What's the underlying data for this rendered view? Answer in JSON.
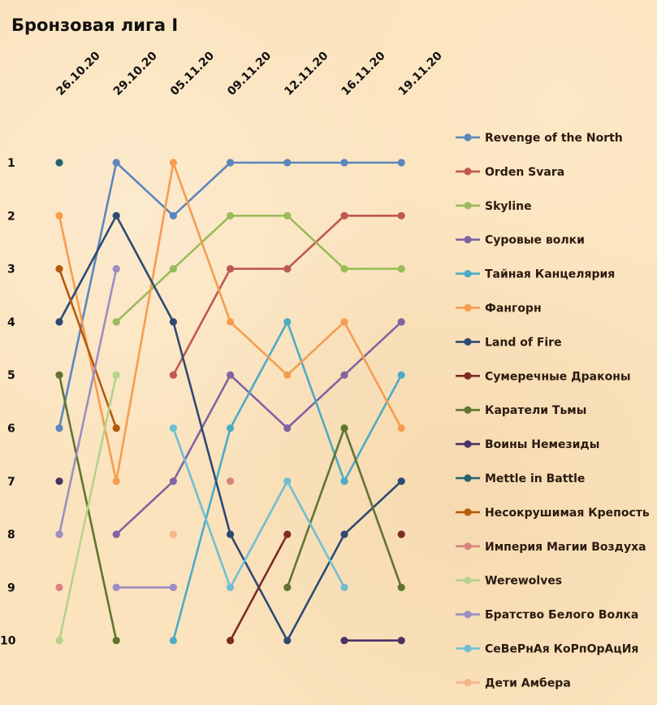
{
  "chart_data": {
    "type": "line",
    "title": "Бронзовая лига I",
    "x": [
      "26.10.20",
      "29.10.20",
      "05.11.20",
      "09.11.20",
      "12.11.20",
      "16.11.20",
      "19.11.20"
    ],
    "y_ticks": [
      "1",
      "2",
      "3",
      "4",
      "5",
      "6",
      "7",
      "8",
      "9",
      "10"
    ],
    "ylim": [
      1,
      10
    ],
    "y_inverted": true,
    "grid": false,
    "legend_position": "right",
    "series": [
      {
        "name": "Revenge of the North",
        "color": "#5b86be",
        "values": [
          6,
          1,
          2,
          1,
          1,
          1,
          1
        ]
      },
      {
        "name": "Orden Svara",
        "color": "#bf5850",
        "values": [
          null,
          null,
          5,
          3,
          3,
          2,
          2
        ]
      },
      {
        "name": "Skyline",
        "color": "#9abb59",
        "values": [
          null,
          4,
          3,
          2,
          2,
          3,
          3
        ]
      },
      {
        "name": "Суровые волки",
        "color": "#8064a2",
        "values": [
          null,
          8,
          7,
          5,
          6,
          5,
          4
        ]
      },
      {
        "name": "Тайная Канцелярия",
        "color": "#4bacc6",
        "values": [
          null,
          null,
          10,
          6,
          4,
          7,
          5
        ]
      },
      {
        "name": "Фангорн",
        "color": "#f59d4f",
        "values": [
          2,
          7,
          1,
          4,
          5,
          4,
          6
        ]
      },
      {
        "name": "Land of Fire",
        "color": "#2f4a72",
        "values": [
          4,
          2,
          4,
          8,
          10,
          8,
          7
        ]
      },
      {
        "name": "Сумеречные Драконы",
        "color": "#7b2c24",
        "values": [
          null,
          null,
          null,
          10,
          8,
          null,
          8
        ]
      },
      {
        "name": "Каратели Тьмы",
        "color": "#5f7530",
        "values": [
          5,
          10,
          null,
          null,
          9,
          6,
          9
        ]
      },
      {
        "name": "Воины Немезиды",
        "color": "#4a3264",
        "values": [
          7,
          null,
          null,
          null,
          null,
          10,
          10
        ]
      },
      {
        "name": "Mettle in Battle",
        "color": "#236270",
        "values": [
          1,
          null,
          null,
          null,
          null,
          null,
          null
        ]
      },
      {
        "name": "Несокрушимая Крепость",
        "color": "#b55a0a",
        "values": [
          3,
          6,
          null,
          null,
          null,
          null,
          null
        ]
      },
      {
        "name": "Империя Магии Воздуха",
        "color": "#d8827e",
        "values": [
          9,
          null,
          null,
          7,
          null,
          null,
          null
        ]
      },
      {
        "name": "Werewolves",
        "color": "#b4d38c",
        "values": [
          10,
          5,
          null,
          null,
          null,
          null,
          null
        ]
      },
      {
        "name": "Братство Белого Волка",
        "color": "#9b8ec4",
        "values": [
          8,
          3,
          null,
          null,
          null,
          null,
          null
        ]
      },
      {
        "name": "СеВеРнАя КоРпОрАцИя",
        "color": "#6fbfd2",
        "values": [
          null,
          null,
          6,
          9,
          7,
          9,
          null
        ]
      },
      {
        "name": "Дети Амбера",
        "color": "#f6b587",
        "values": [
          null,
          null,
          8,
          null,
          null,
          null,
          null
        ]
      }
    ],
    "extra_segments": [
      {
        "series": "Братство Белого Волка",
        "points": [
          [
            1,
            9
          ],
          [
            2,
            9
          ]
        ]
      }
    ]
  }
}
